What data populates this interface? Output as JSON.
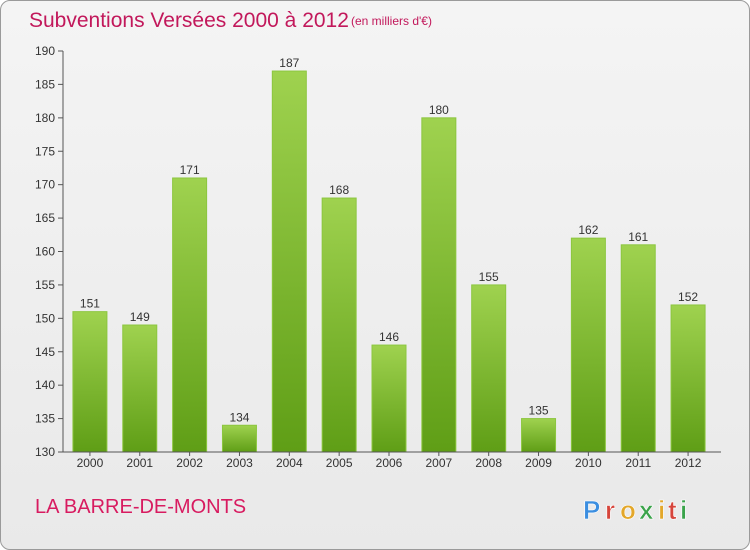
{
  "header": {
    "title": "Subventions Versées 2000 à 2012",
    "unit_note": "(en milliers d'€)"
  },
  "footer": {
    "commune": "LA BARRE-DE-MONTS",
    "logo_letters": [
      "P",
      "r",
      "o",
      "x",
      "i",
      "t",
      "i"
    ]
  },
  "colors": {
    "bar_top": "#9fd24f",
    "bar_bottom": "#5f9e16",
    "title": "#c2185b",
    "logo": [
      "#3b8ee0",
      "#d6453b",
      "#e3a72a",
      "#3aa34a",
      "#e3a72a",
      "#d6453b",
      "#3aa34a"
    ]
  },
  "chart_data": {
    "type": "bar",
    "title": "Subventions Versées 2000 à 2012",
    "categories": [
      "2000",
      "2001",
      "2002",
      "2003",
      "2004",
      "2005",
      "2006",
      "2007",
      "2008",
      "2009",
      "2010",
      "2011",
      "2012"
    ],
    "values": [
      151,
      149,
      171,
      134,
      187,
      168,
      146,
      180,
      155,
      135,
      162,
      161,
      152
    ],
    "ylim": [
      130,
      190
    ],
    "yticks": [
      130,
      135,
      140,
      145,
      150,
      155,
      160,
      165,
      170,
      175,
      180,
      185,
      190
    ],
    "grid": false,
    "xlabel": "",
    "ylabel": ""
  }
}
